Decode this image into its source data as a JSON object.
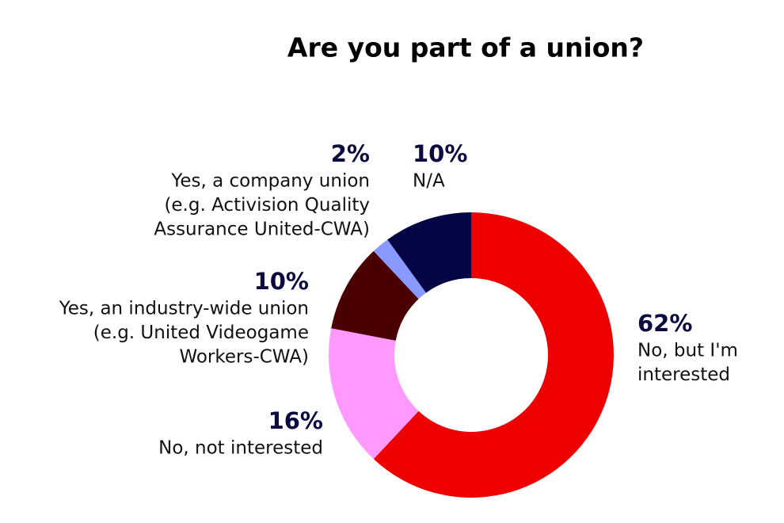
{
  "chart_data": {
    "type": "donut",
    "title": "Are you part of a union?",
    "categories": [
      [
        "No, but I'm",
        "interested"
      ],
      [
        "No, not interested"
      ],
      [
        "Yes, an industry-wide union",
        "(e.g. United Videogame",
        "Workers-CWA)"
      ],
      [
        "Yes, a company union",
        "(e.g. Activision Quality",
        "Assurance United-CWA)"
      ],
      [
        "N/A"
      ]
    ],
    "values": [
      62,
      16,
      10,
      2,
      10
    ],
    "value_labels": [
      "62%",
      "16%",
      "10%",
      "2%",
      "10%"
    ],
    "colors": [
      "#ee0000",
      "#ff99ff",
      "#4a0000",
      "#8899ff",
      "#050545"
    ]
  }
}
